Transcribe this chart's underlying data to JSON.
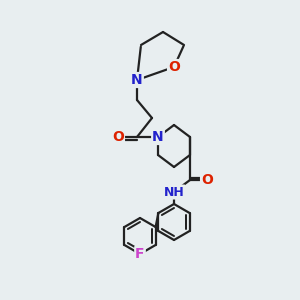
{
  "bg_color": "#e8eef0",
  "bond_color": "#222222",
  "bond_width": 1.6,
  "atom_colors": {
    "N": "#2222cc",
    "O": "#dd2200",
    "F": "#cc44cc",
    "H_color": "#4a9a9a",
    "C": "#222222"
  },
  "font_size_atom": 10,
  "font_size_small": 9
}
